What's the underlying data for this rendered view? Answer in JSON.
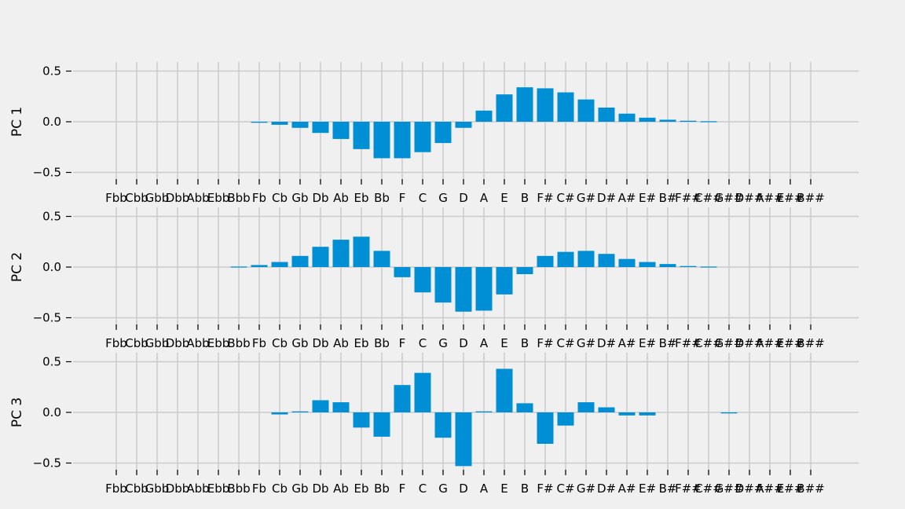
{
  "figure": {
    "background": "#f0f0f0",
    "bar_color": "#008fd5",
    "grid_color": "#cbcbcb"
  },
  "chart_data": [
    {
      "type": "bar",
      "ylabel": "PC 1",
      "ylim": [
        -0.6,
        0.6
      ],
      "yticks": [
        -0.5,
        0.0,
        0.5
      ],
      "ytick_labels": [
        "−0.5",
        "0.0",
        "0.5"
      ],
      "grid": true,
      "categories": [
        "Fbb",
        "Cbb",
        "Gbb",
        "Dbb",
        "Abb",
        "Ebb",
        "Bbb",
        "Fb",
        "Cb",
        "Gb",
        "Db",
        "Ab",
        "Eb",
        "Bb",
        "F",
        "C",
        "G",
        "D",
        "A",
        "E",
        "B",
        "F#",
        "C#",
        "G#",
        "D#",
        "A#",
        "E#",
        "B#",
        "F##",
        "C##",
        "G##",
        "D##",
        "A##",
        "E##",
        "B##"
      ],
      "values": [
        0,
        0,
        0,
        0,
        0,
        0,
        0,
        -0.01,
        -0.03,
        -0.06,
        -0.11,
        -0.17,
        -0.27,
        -0.36,
        -0.36,
        -0.3,
        -0.21,
        -0.06,
        0.11,
        0.27,
        0.34,
        0.33,
        0.29,
        0.22,
        0.14,
        0.08,
        0.04,
        0.02,
        0.01,
        0.005,
        0,
        0,
        0,
        0,
        0
      ]
    },
    {
      "type": "bar",
      "ylabel": "PC 2",
      "ylim": [
        -0.6,
        0.6
      ],
      "yticks": [
        -0.5,
        0.0,
        0.5
      ],
      "ytick_labels": [
        "−0.5",
        "0.0",
        "0.5"
      ],
      "grid": true,
      "categories": [
        "Fbb",
        "Cbb",
        "Gbb",
        "Dbb",
        "Abb",
        "Ebb",
        "Bbb",
        "Fb",
        "Cb",
        "Gb",
        "Db",
        "Ab",
        "Eb",
        "Bb",
        "F",
        "C",
        "G",
        "D",
        "A",
        "E",
        "B",
        "F#",
        "C#",
        "G#",
        "D#",
        "A#",
        "E#",
        "B#",
        "F##",
        "C##",
        "G##",
        "D##",
        "A##",
        "E##",
        "B##"
      ],
      "values": [
        0,
        0,
        0,
        0,
        0,
        0,
        0.005,
        0.02,
        0.05,
        0.11,
        0.2,
        0.27,
        0.3,
        0.16,
        -0.1,
        -0.25,
        -0.35,
        -0.44,
        -0.43,
        -0.27,
        -0.07,
        0.11,
        0.15,
        0.16,
        0.13,
        0.08,
        0.05,
        0.03,
        0.01,
        0.005,
        0,
        0,
        0,
        0,
        0
      ]
    },
    {
      "type": "bar",
      "ylabel": "PC 3",
      "ylim": [
        -0.6,
        0.6
      ],
      "yticks": [
        -0.5,
        0.0,
        0.5
      ],
      "ytick_labels": [
        "−0.5",
        "0.0",
        "0.5"
      ],
      "grid": true,
      "categories": [
        "Fbb",
        "Cbb",
        "Gbb",
        "Dbb",
        "Abb",
        "Ebb",
        "Bbb",
        "Fb",
        "Cb",
        "Gb",
        "Db",
        "Ab",
        "Eb",
        "Bb",
        "F",
        "C",
        "G",
        "D",
        "A",
        "E",
        "B",
        "F#",
        "C#",
        "G#",
        "D#",
        "A#",
        "E#",
        "B#",
        "F##",
        "C##",
        "G##",
        "D##",
        "A##",
        "E##",
        "B##"
      ],
      "values": [
        0,
        0,
        0,
        0,
        0,
        0,
        0,
        0,
        -0.02,
        0.01,
        0.12,
        0.1,
        -0.15,
        -0.24,
        0.27,
        0.39,
        -0.25,
        -0.53,
        0.01,
        0.43,
        0.09,
        -0.31,
        -0.13,
        0.1,
        0.05,
        -0.03,
        -0.03,
        0,
        0,
        0,
        -0.01,
        0,
        0,
        0,
        0
      ]
    }
  ]
}
